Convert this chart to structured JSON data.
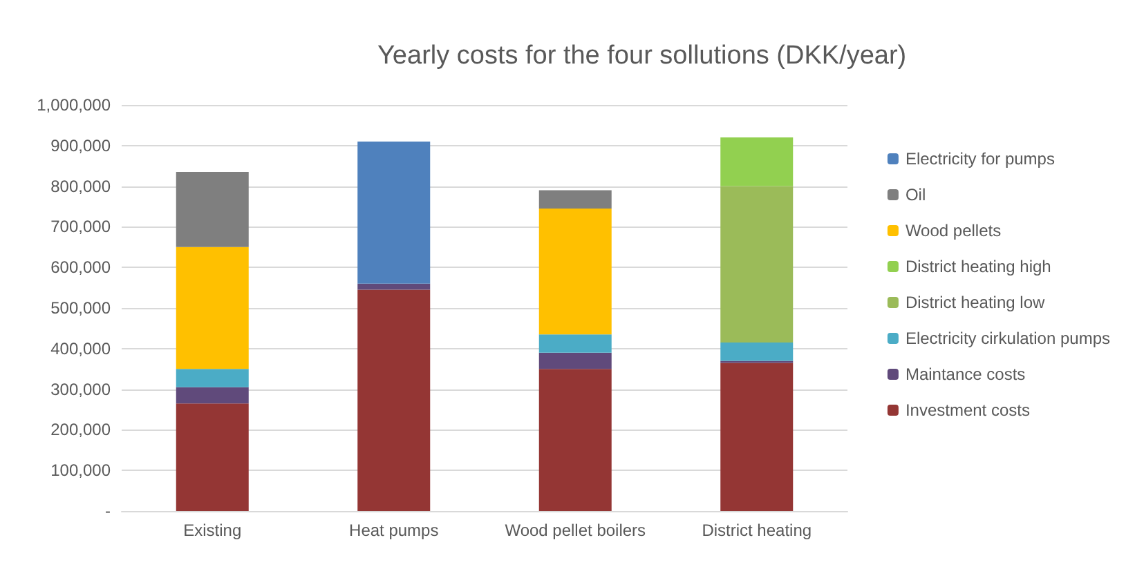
{
  "chart_data": {
    "type": "bar",
    "title": "Yearly costs for the four sollutions (DKK/year)",
    "stacked": true,
    "categories": [
      "Existing",
      "Heat pumps",
      "Wood pellet boilers",
      "District heating"
    ],
    "series": [
      {
        "name": "Investment costs",
        "color": "#943634",
        "values": [
          265000,
          545000,
          350000,
          365000
        ]
      },
      {
        "name": "Maintance costs",
        "color": "#604a7b",
        "values": [
          40000,
          15000,
          40000,
          5000
        ]
      },
      {
        "name": "Electricity cirkulation pumps",
        "color": "#4bacc6",
        "values": [
          45000,
          null,
          45000,
          45000
        ]
      },
      {
        "name": "District heating low",
        "color": "#9bbb59",
        "values": [
          null,
          null,
          null,
          385000
        ]
      },
      {
        "name": "District heating high",
        "color": "#92d050",
        "values": [
          null,
          null,
          null,
          120000
        ]
      },
      {
        "name": "Wood pellets",
        "color": "#ffc000",
        "values": [
          300000,
          null,
          310000,
          null
        ]
      },
      {
        "name": "Oil",
        "color": "#7f7f7f",
        "values": [
          185000,
          null,
          45000,
          null
        ]
      },
      {
        "name": "Electricity for pumps",
        "color": "#4f81bd",
        "values": [
          null,
          350000,
          null,
          null
        ]
      }
    ],
    "ylim": [
      0,
      1000000
    ],
    "yticks": [
      {
        "value": 0,
        "label": "-"
      },
      {
        "value": 100000,
        "label": "100,000"
      },
      {
        "value": 200000,
        "label": "200,000"
      },
      {
        "value": 300000,
        "label": "300,000"
      },
      {
        "value": 400000,
        "label": "400,000"
      },
      {
        "value": 500000,
        "label": "500,000"
      },
      {
        "value": 600000,
        "label": "600,000"
      },
      {
        "value": 700000,
        "label": "700,000"
      },
      {
        "value": 800000,
        "label": "800,000"
      },
      {
        "value": 900000,
        "label": "900,000"
      },
      {
        "value": 1000000,
        "label": "1,000,000"
      }
    ],
    "grid": "y",
    "legend": "right"
  }
}
